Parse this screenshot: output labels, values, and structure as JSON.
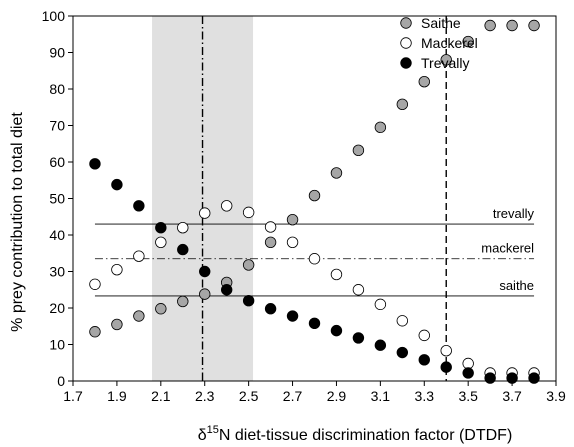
{
  "chart_data": {
    "type": "scatter",
    "xlabel_delta": "δ",
    "xlabel_sup": "15",
    "xlabel_rest": "N diet-tissue discrimination factor (DTDF)",
    "ylabel": "% prey contribution to total diet",
    "xlim": [
      1.7,
      3.9
    ],
    "ylim": [
      0,
      100
    ],
    "x_ticks": [
      "1.7",
      "1.9",
      "2.1",
      "2.3",
      "2.5",
      "2.7",
      "2.9",
      "3.1",
      "3.3",
      "3.5",
      "3.7",
      "3.9"
    ],
    "y_ticks": [
      "0",
      "10",
      "20",
      "30",
      "40",
      "50",
      "60",
      "70",
      "80",
      "90",
      "100"
    ],
    "grid": false,
    "legend_position": "top-right",
    "shaded_region": {
      "x_start": 2.06,
      "x_end": 2.52,
      "color": "#e0e0e0"
    },
    "vlines": [
      {
        "x": 2.29,
        "style": "dash-dot"
      },
      {
        "x": 3.4,
        "style": "dashed"
      }
    ],
    "hlines": [
      {
        "y": 43,
        "style": "solid",
        "label": "trevally"
      },
      {
        "y": 33.5,
        "style": "dash-dot",
        "label": "mackerel"
      },
      {
        "y": 23.3,
        "style": "solid",
        "label": "saithe"
      }
    ],
    "x": [
      1.8,
      1.9,
      2.0,
      2.1,
      2.2,
      2.3,
      2.4,
      2.5,
      2.6,
      2.7,
      2.8,
      2.9,
      3.0,
      3.1,
      3.2,
      3.3,
      3.4,
      3.5,
      3.6,
      3.7,
      3.8
    ],
    "series": [
      {
        "name": "Saithe",
        "fill": "#a6a6a6",
        "values": [
          13.5,
          15.5,
          17.8,
          19.8,
          21.8,
          23.8,
          27,
          31.8,
          38,
          44.2,
          50.8,
          57,
          63.2,
          69.5,
          75.8,
          82,
          88,
          93,
          97.4,
          97.4,
          97.4
        ]
      },
      {
        "name": "Mackerel",
        "fill": "#ffffff",
        "values": [
          26.5,
          30.5,
          34.2,
          38,
          42,
          46,
          48,
          46.2,
          42.2,
          38,
          33.5,
          29.2,
          25,
          21,
          16.5,
          12.5,
          8.3,
          4.8,
          2.2,
          2.2,
          2.2
        ]
      },
      {
        "name": "Trevally",
        "fill": "#000000",
        "values": [
          59.5,
          53.8,
          48,
          42,
          36,
          30,
          25,
          22,
          19.8,
          17.8,
          15.8,
          13.8,
          11.8,
          9.8,
          7.8,
          5.8,
          3.8,
          2.2,
          0.8,
          0.8,
          0.8
        ]
      }
    ]
  }
}
